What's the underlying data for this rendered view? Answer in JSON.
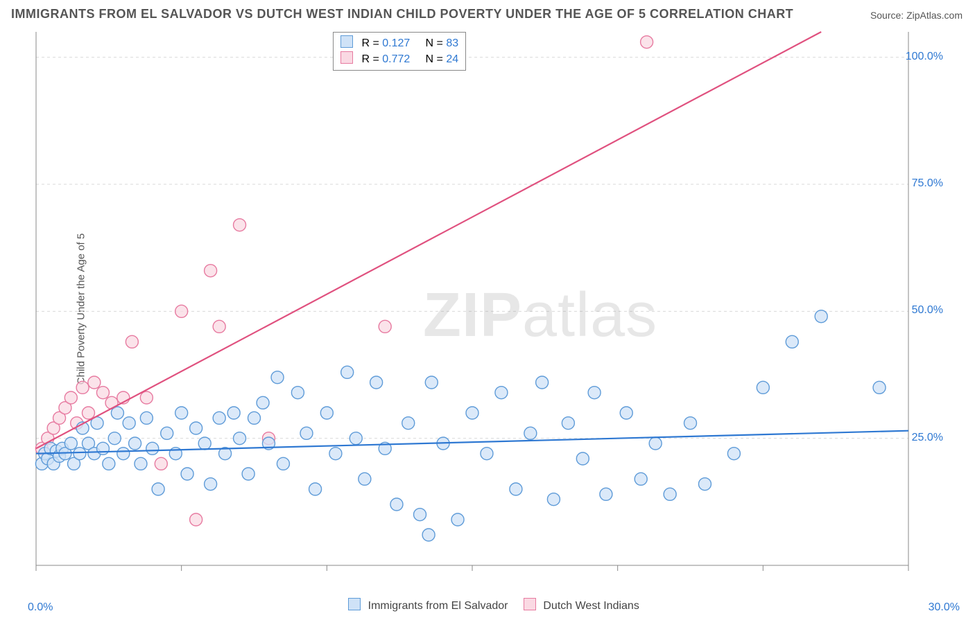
{
  "title": "IMMIGRANTS FROM EL SALVADOR VS DUTCH WEST INDIAN CHILD POVERTY UNDER THE AGE OF 5 CORRELATION CHART",
  "source_label": "Source: ",
  "source_name": "ZipAtlas.com",
  "ylabel": "Child Poverty Under the Age of 5",
  "watermark_a": "ZIP",
  "watermark_b": "atlas",
  "chart": {
    "type": "scatter",
    "x_domain": [
      0,
      30
    ],
    "y_domain": [
      0,
      105
    ],
    "x_ticks": [
      0,
      5,
      10,
      15,
      20,
      25,
      30
    ],
    "y_ticks": [
      25,
      50,
      75,
      100
    ],
    "y_tick_labels": [
      "25.0%",
      "50.0%",
      "75.0%",
      "100.0%"
    ],
    "x_min_label": "0.0%",
    "x_max_label": "30.0%",
    "grid_color": "#d9d9d9",
    "axis_color": "#888888",
    "background": "#ffffff",
    "marker_radius": 9,
    "marker_stroke_width": 1.4,
    "line_width": 2.2,
    "series": [
      {
        "key": "salvador",
        "label": "Immigrants from El Salvador",
        "fill": "#cfe2f7",
        "stroke": "#5e9bd8",
        "line_color": "#2e78d2",
        "R": "0.127",
        "N": "83",
        "trend": {
          "x1": 0,
          "y1": 22,
          "x2": 30,
          "y2": 26.5
        },
        "points": [
          [
            0.2,
            20
          ],
          [
            0.3,
            22
          ],
          [
            0.4,
            21
          ],
          [
            0.5,
            23
          ],
          [
            0.6,
            20
          ],
          [
            0.7,
            22.5
          ],
          [
            0.8,
            21.5
          ],
          [
            0.9,
            23
          ],
          [
            1.0,
            22
          ],
          [
            1.2,
            24
          ],
          [
            1.3,
            20
          ],
          [
            1.5,
            22
          ],
          [
            1.6,
            27
          ],
          [
            1.8,
            24
          ],
          [
            2.0,
            22
          ],
          [
            2.1,
            28
          ],
          [
            2.3,
            23
          ],
          [
            2.5,
            20
          ],
          [
            2.7,
            25
          ],
          [
            2.8,
            30
          ],
          [
            3.0,
            22
          ],
          [
            3.2,
            28
          ],
          [
            3.4,
            24
          ],
          [
            3.6,
            20
          ],
          [
            3.8,
            29
          ],
          [
            4.0,
            23
          ],
          [
            4.2,
            15
          ],
          [
            4.5,
            26
          ],
          [
            4.8,
            22
          ],
          [
            5.0,
            30
          ],
          [
            5.2,
            18
          ],
          [
            5.5,
            27
          ],
          [
            5.8,
            24
          ],
          [
            6.0,
            16
          ],
          [
            6.3,
            29
          ],
          [
            6.5,
            22
          ],
          [
            6.8,
            30
          ],
          [
            7.0,
            25
          ],
          [
            7.3,
            18
          ],
          [
            7.5,
            29
          ],
          [
            7.8,
            32
          ],
          [
            8.0,
            24
          ],
          [
            8.3,
            37
          ],
          [
            8.5,
            20
          ],
          [
            9.0,
            34
          ],
          [
            9.3,
            26
          ],
          [
            9.6,
            15
          ],
          [
            10.0,
            30
          ],
          [
            10.3,
            22
          ],
          [
            10.7,
            38
          ],
          [
            11.0,
            25
          ],
          [
            11.3,
            17
          ],
          [
            11.7,
            36
          ],
          [
            12.0,
            23
          ],
          [
            12.4,
            12
          ],
          [
            12.8,
            28
          ],
          [
            13.2,
            10
          ],
          [
            13.6,
            36
          ],
          [
            14.0,
            24
          ],
          [
            14.5,
            9
          ],
          [
            15.0,
            30
          ],
          [
            15.5,
            22
          ],
          [
            16.0,
            34
          ],
          [
            16.5,
            15
          ],
          [
            17.0,
            26
          ],
          [
            17.4,
            36
          ],
          [
            17.8,
            13
          ],
          [
            18.3,
            28
          ],
          [
            18.8,
            21
          ],
          [
            19.2,
            34
          ],
          [
            19.6,
            14
          ],
          [
            20.3,
            30
          ],
          [
            20.8,
            17
          ],
          [
            21.3,
            24
          ],
          [
            21.8,
            14
          ],
          [
            22.5,
            28
          ],
          [
            23.0,
            16
          ],
          [
            24.0,
            22
          ],
          [
            25.0,
            35
          ],
          [
            26.0,
            44
          ],
          [
            27.0,
            49
          ],
          [
            29.0,
            35
          ],
          [
            13.5,
            6
          ]
        ]
      },
      {
        "key": "dutch",
        "label": "Dutch West Indians",
        "fill": "#fad9e3",
        "stroke": "#e77aa0",
        "line_color": "#e0517f",
        "R": "0.772",
        "N": "24",
        "trend": {
          "x1": 0,
          "y1": 23,
          "x2": 27,
          "y2": 105
        },
        "points": [
          [
            0.2,
            23
          ],
          [
            0.4,
            25
          ],
          [
            0.6,
            27
          ],
          [
            0.8,
            29
          ],
          [
            1.0,
            31
          ],
          [
            1.2,
            33
          ],
          [
            1.4,
            28
          ],
          [
            1.6,
            35
          ],
          [
            1.8,
            30
          ],
          [
            2.0,
            36
          ],
          [
            2.3,
            34
          ],
          [
            2.6,
            32
          ],
          [
            3.0,
            33
          ],
          [
            3.3,
            44
          ],
          [
            3.8,
            33
          ],
          [
            4.3,
            20
          ],
          [
            5.0,
            50
          ],
          [
            5.5,
            9
          ],
          [
            6.0,
            58
          ],
          [
            6.3,
            47
          ],
          [
            7.0,
            67
          ],
          [
            8.0,
            25
          ],
          [
            12.0,
            47
          ],
          [
            21.0,
            103
          ]
        ]
      }
    ]
  },
  "stats_box": {
    "r_prefix": "R  =  ",
    "n_prefix": "N  =  "
  }
}
